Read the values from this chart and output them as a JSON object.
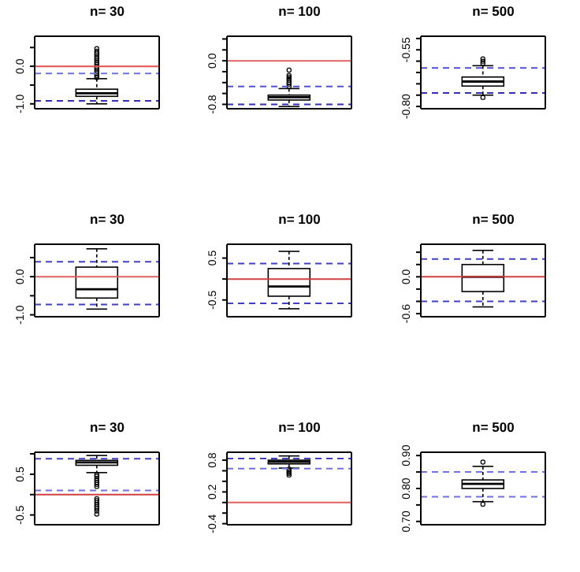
{
  "chart_data": [
    {
      "type": "box",
      "title": "n= 30",
      "categories": [
        null
      ],
      "tick_labels": "y",
      "ylim": [
        -1.13,
        0.8
      ],
      "yticks": [
        {
          "value": -1,
          "label": "-1.0"
        },
        {
          "value": -0.5,
          "label": null
        },
        {
          "value": 0,
          "label": "0.0"
        },
        {
          "value": 0.5,
          "label": null
        }
      ],
      "boxes": [
        {
          "low": -1.0,
          "q1": -0.8,
          "median": -0.72,
          "q3": -0.61,
          "high": -0.33,
          "outliers": [
            -0.3,
            -0.25,
            -0.2,
            -0.15,
            -0.1,
            -0.05,
            0,
            0.05,
            0.1,
            0.15,
            0.2,
            0.25,
            0.3,
            0.35,
            0.4,
            0.47
          ]
        }
      ],
      "ref_lines": [
        {
          "axis": "y",
          "value": 0,
          "color": "#e05050",
          "line_style": "solid"
        },
        {
          "axis": "y",
          "value": -0.19,
          "color": "#7070e0",
          "line_style": "dashed"
        },
        {
          "axis": "y",
          "value": -0.92,
          "color": "#3030b0",
          "line_style": "dashed"
        }
      ]
    },
    {
      "type": "box",
      "title": "n= 100",
      "categories": [
        null
      ],
      "tick_labels": "y",
      "ylim": [
        -0.88,
        0.45
      ],
      "yticks": [
        {
          "value": -0.8,
          "label": "-0.8"
        },
        {
          "value": -0.6,
          "label": null
        },
        {
          "value": -0.4,
          "label": null
        },
        {
          "value": -0.2,
          "label": null
        },
        {
          "value": 0,
          "label": "0.0"
        },
        {
          "value": 0.2,
          "label": null
        },
        {
          "value": 0.4,
          "label": null
        }
      ],
      "boxes": [
        {
          "low": -0.84,
          "q1": -0.72,
          "median": -0.67,
          "q3": -0.63,
          "high": -0.51,
          "outliers": [
            -0.47,
            -0.43,
            -0.4,
            -0.36,
            -0.33,
            -0.3,
            -0.27,
            -0.17
          ]
        }
      ],
      "ref_lines": [
        {
          "axis": "y",
          "value": 0,
          "color": "#e06060",
          "line_style": "solid"
        },
        {
          "axis": "y",
          "value": -0.47,
          "color": "#5050d0",
          "line_style": "dashed"
        },
        {
          "axis": "y",
          "value": -0.8,
          "color": "#3030b0",
          "line_style": "dashed"
        }
      ]
    },
    {
      "type": "box",
      "title": "n= 500",
      "categories": [
        null
      ],
      "tick_labels": "y",
      "ylim": [
        -0.81,
        -0.49
      ],
      "yticks": [
        {
          "value": -0.8,
          "label": "-0.80"
        },
        {
          "value": -0.75,
          "label": null
        },
        {
          "value": -0.7,
          "label": null
        },
        {
          "value": -0.65,
          "label": null
        },
        {
          "value": -0.6,
          "label": null
        },
        {
          "value": -0.55,
          "label": "-0.55"
        },
        {
          "value": -0.5,
          "label": null
        }
      ],
      "boxes": [
        {
          "low": -0.75,
          "q1": -0.71,
          "median": -0.69,
          "q3": -0.67,
          "high": -0.62,
          "outliers": [
            -0.59,
            -0.6,
            -0.61,
            -0.76
          ]
        }
      ],
      "ref_lines": [
        {
          "axis": "y",
          "value": -0.63,
          "color": "#5050d0",
          "line_style": "dashed"
        },
        {
          "axis": "y",
          "value": -0.74,
          "color": "#3030b0",
          "line_style": "dashed"
        }
      ]
    },
    {
      "type": "box",
      "title": "n= 30",
      "categories": [
        null
      ],
      "tick_labels": "y",
      "ylim": [
        -1.05,
        0.85
      ],
      "yticks": [
        {
          "value": -1,
          "label": "-1.0"
        },
        {
          "value": -0.5,
          "label": null
        },
        {
          "value": 0,
          "label": "0.0"
        },
        {
          "value": 0.5,
          "label": null
        }
      ],
      "boxes": [
        {
          "low": -0.85,
          "q1": -0.56,
          "median": -0.33,
          "q3": 0.25,
          "high": 0.73
        }
      ],
      "ref_lines": [
        {
          "axis": "y",
          "value": 0,
          "color": "#e06060",
          "line_style": "solid"
        },
        {
          "axis": "y",
          "value": 0.39,
          "color": "#4040c0",
          "line_style": "dashed"
        },
        {
          "axis": "y",
          "value": -0.73,
          "color": "#4040c0",
          "line_style": "dashed"
        }
      ]
    },
    {
      "type": "box",
      "title": "n= 100",
      "categories": [
        null
      ],
      "tick_labels": "y",
      "ylim": [
        -0.9,
        0.83
      ],
      "yticks": [
        {
          "value": -0.5,
          "label": "-0.5"
        },
        {
          "value": 0,
          "label": null
        },
        {
          "value": 0.5,
          "label": "0.5"
        }
      ],
      "boxes": [
        {
          "low": -0.71,
          "q1": -0.41,
          "median": -0.18,
          "q3": 0.25,
          "high": 0.66
        }
      ],
      "ref_lines": [
        {
          "axis": "y",
          "value": 0,
          "color": "#d04040",
          "line_style": "solid"
        },
        {
          "axis": "y",
          "value": 0.37,
          "color": "#4040c0",
          "line_style": "dashed"
        },
        {
          "axis": "y",
          "value": -0.58,
          "color": "#4040c0",
          "line_style": "dashed"
        }
      ]
    },
    {
      "type": "box",
      "title": "n= 500",
      "categories": [
        null
      ],
      "tick_labels": "y",
      "ylim": [
        -0.65,
        0.53
      ],
      "yticks": [
        {
          "value": -0.6,
          "label": "-0.6"
        },
        {
          "value": -0.4,
          "label": null
        },
        {
          "value": -0.2,
          "label": null
        },
        {
          "value": 0,
          "label": "0.0"
        },
        {
          "value": 0.2,
          "label": null
        },
        {
          "value": 0.4,
          "label": null
        }
      ],
      "boxes": [
        {
          "low": -0.49,
          "q1": -0.24,
          "median": 0,
          "q3": 0.2,
          "high": 0.43
        }
      ],
      "ref_lines": [
        {
          "axis": "y",
          "value": 0,
          "color": "#d04040",
          "line_style": "solid"
        },
        {
          "axis": "y",
          "value": 0.29,
          "color": "#4040c0",
          "line_style": "dashed"
        },
        {
          "axis": "y",
          "value": -0.4,
          "color": "#4040c0",
          "line_style": "dashed"
        }
      ]
    },
    {
      "type": "box",
      "title": "n= 30",
      "categories": [
        null
      ],
      "tick_labels": "y",
      "ylim": [
        -0.74,
        1.04
      ],
      "yticks": [
        {
          "value": -0.5,
          "label": "-0.5"
        },
        {
          "value": 0,
          "label": null
        },
        {
          "value": 0.5,
          "label": "0.5"
        },
        {
          "value": 1,
          "label": null
        }
      ],
      "boxes": [
        {
          "low": 0.54,
          "q1": 0.72,
          "median": 0.79,
          "q3": 0.84,
          "high": 0.96,
          "outliers": [
            0.49,
            0.45,
            0.4,
            0.35,
            0.3,
            0.25,
            0.2,
            -0.1,
            -0.15,
            -0.2,
            -0.25,
            -0.3,
            -0.35,
            -0.4,
            -0.48
          ]
        }
      ],
      "ref_lines": [
        {
          "axis": "y",
          "value": 0,
          "color": "#d04040",
          "line_style": "solid"
        },
        {
          "axis": "y",
          "value": 0.88,
          "color": "#4040c0",
          "line_style": "dashed"
        },
        {
          "axis": "y",
          "value": 0.1,
          "color": "#7070e0",
          "line_style": "dashed"
        }
      ]
    },
    {
      "type": "box",
      "title": "n= 100",
      "categories": [
        null
      ],
      "tick_labels": "y",
      "ylim": [
        -0.42,
        0.95
      ],
      "yticks": [
        {
          "value": -0.4,
          "label": "-0.4"
        },
        {
          "value": -0.2,
          "label": null
        },
        {
          "value": 0,
          "label": null
        },
        {
          "value": 0.2,
          "label": "0.2"
        },
        {
          "value": 0.4,
          "label": null
        },
        {
          "value": 0.6,
          "label": null
        },
        {
          "value": 0.8,
          "label": "0.8"
        }
      ],
      "boxes": [
        {
          "low": 0.65,
          "q1": 0.73,
          "median": 0.77,
          "q3": 0.8,
          "high": 0.88,
          "outliers": [
            0.63,
            0.6,
            0.57,
            0.55,
            0.52
          ]
        }
      ],
      "ref_lines": [
        {
          "axis": "y",
          "value": 0,
          "color": "#e06060",
          "line_style": "solid"
        },
        {
          "axis": "y",
          "value": 0.83,
          "color": "#4040c0",
          "line_style": "dashed"
        },
        {
          "axis": "y",
          "value": 0.64,
          "color": "#7070e0",
          "line_style": "dashed"
        }
      ]
    },
    {
      "type": "box",
      "title": "n= 500",
      "categories": [
        null
      ],
      "tick_labels": "y",
      "ylim": [
        0.69,
        0.91
      ],
      "yticks": [
        {
          "value": 0.7,
          "label": "0.70"
        },
        {
          "value": 0.75,
          "label": null
        },
        {
          "value": 0.8,
          "label": "0.80"
        },
        {
          "value": 0.85,
          "label": null
        },
        {
          "value": 0.9,
          "label": "0.90"
        }
      ],
      "boxes": [
        {
          "low": 0.76,
          "q1": 0.8,
          "median": 0.814,
          "q3": 0.826,
          "high": 0.867,
          "outliers": [
            0.88,
            0.752
          ]
        }
      ],
      "ref_lines": [
        {
          "axis": "y",
          "value": 0.85,
          "color": "#7070e0",
          "line_style": "dashed"
        },
        {
          "axis": "y",
          "value": 0.775,
          "color": "#7070e0",
          "line_style": "dashed"
        }
      ]
    }
  ]
}
